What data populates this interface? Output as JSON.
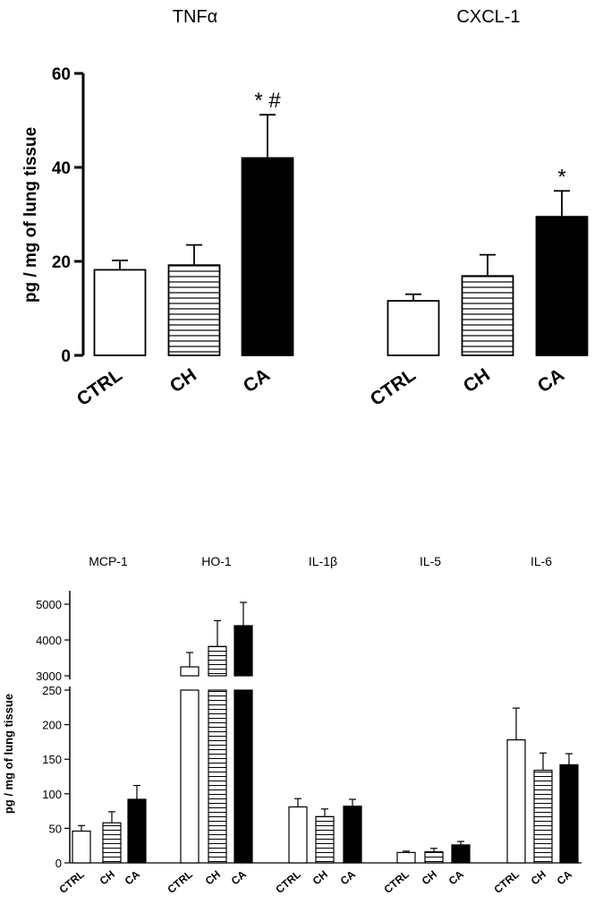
{
  "chart_data": [
    {
      "type": "bar",
      "ylabel": "pg / mg of lung tissue",
      "ylim": [
        0,
        60
      ],
      "yticks": [
        0,
        20,
        40,
        60
      ],
      "groups": [
        {
          "name": "TNFα",
          "categories": [
            "CTRL",
            "CH",
            "CA"
          ],
          "values": [
            18.2,
            19.2,
            42.0
          ],
          "errors": [
            2.0,
            4.3,
            9.2
          ],
          "annotations": [
            "",
            "",
            "* #"
          ]
        },
        {
          "name": "CXCL-1",
          "categories": [
            "CTRL",
            "CH",
            "CA"
          ],
          "values": [
            11.6,
            16.9,
            29.5
          ],
          "errors": [
            1.4,
            4.5,
            5.5
          ],
          "annotations": [
            "",
            "",
            "*"
          ]
        }
      ],
      "series_styles": [
        "white",
        "horizontal-stripes",
        "black"
      ]
    },
    {
      "type": "bar",
      "ylabel": "pg / mg of lung tissue",
      "y_axis_break": true,
      "lower_ylim": [
        0,
        250
      ],
      "lower_yticks": [
        0,
        50,
        100,
        150,
        200,
        250
      ],
      "upper_ylim": [
        3000,
        5000
      ],
      "upper_yticks": [
        3000,
        4000,
        5000
      ],
      "groups": [
        {
          "name": "MCP-1",
          "categories": [
            "CTRL",
            "CH",
            "CA"
          ],
          "values": [
            46,
            58,
            92
          ],
          "errors": [
            8,
            16,
            20
          ]
        },
        {
          "name": "HO-1",
          "categories": [
            "CTRL",
            "CH",
            "CA"
          ],
          "values": [
            3250,
            3820,
            4400
          ],
          "errors": [
            400,
            720,
            650
          ]
        },
        {
          "name": "IL-1β",
          "categories": [
            "CTRL",
            "CH",
            "CA"
          ],
          "values": [
            81,
            67,
            82
          ],
          "errors": [
            12,
            11,
            10
          ]
        },
        {
          "name": "IL-5",
          "categories": [
            "CTRL",
            "CH",
            "CA"
          ],
          "values": [
            15,
            16,
            26
          ],
          "errors": [
            2,
            5,
            5
          ]
        },
        {
          "name": "IL-6",
          "categories": [
            "CTRL",
            "CH",
            "CA"
          ],
          "values": [
            178,
            134,
            142
          ],
          "errors": [
            46,
            25,
            16
          ]
        }
      ],
      "series_styles": [
        "white",
        "horizontal-stripes",
        "black"
      ]
    }
  ]
}
